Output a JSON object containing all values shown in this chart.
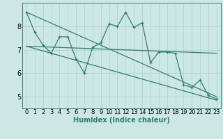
{
  "x": [
    0,
    1,
    2,
    3,
    4,
    5,
    6,
    7,
    8,
    9,
    10,
    11,
    12,
    13,
    14,
    15,
    16,
    17,
    18,
    19,
    20,
    21,
    22,
    23
  ],
  "y_main": [
    8.6,
    7.75,
    7.2,
    6.85,
    7.55,
    7.55,
    6.6,
    6.0,
    7.1,
    7.3,
    8.1,
    8.0,
    8.6,
    7.95,
    8.15,
    6.45,
    6.9,
    6.9,
    6.85,
    5.5,
    5.4,
    5.7,
    5.05,
    4.9
  ],
  "trend1_x": [
    0,
    23
  ],
  "trend1_y": [
    8.6,
    5.0
  ],
  "trend2_x": [
    0,
    23
  ],
  "trend2_y": [
    7.15,
    6.85
  ],
  "trend3_x": [
    0,
    23
  ],
  "trend3_y": [
    7.15,
    4.85
  ],
  "xlabel": "Humidex (Indice chaleur)",
  "xlim": [
    -0.5,
    23.5
  ],
  "ylim": [
    4.5,
    9.0
  ],
  "yticks": [
    5,
    6,
    7,
    8
  ],
  "xticks": [
    0,
    1,
    2,
    3,
    4,
    5,
    6,
    7,
    8,
    9,
    10,
    11,
    12,
    13,
    14,
    15,
    16,
    17,
    18,
    19,
    20,
    21,
    22,
    23
  ],
  "line_color": "#2e7d6e",
  "bg_color": "#cde8e4",
  "grid_color": "#b0d4cf",
  "xlabel_fontsize": 7,
  "tick_fontsize": 6
}
